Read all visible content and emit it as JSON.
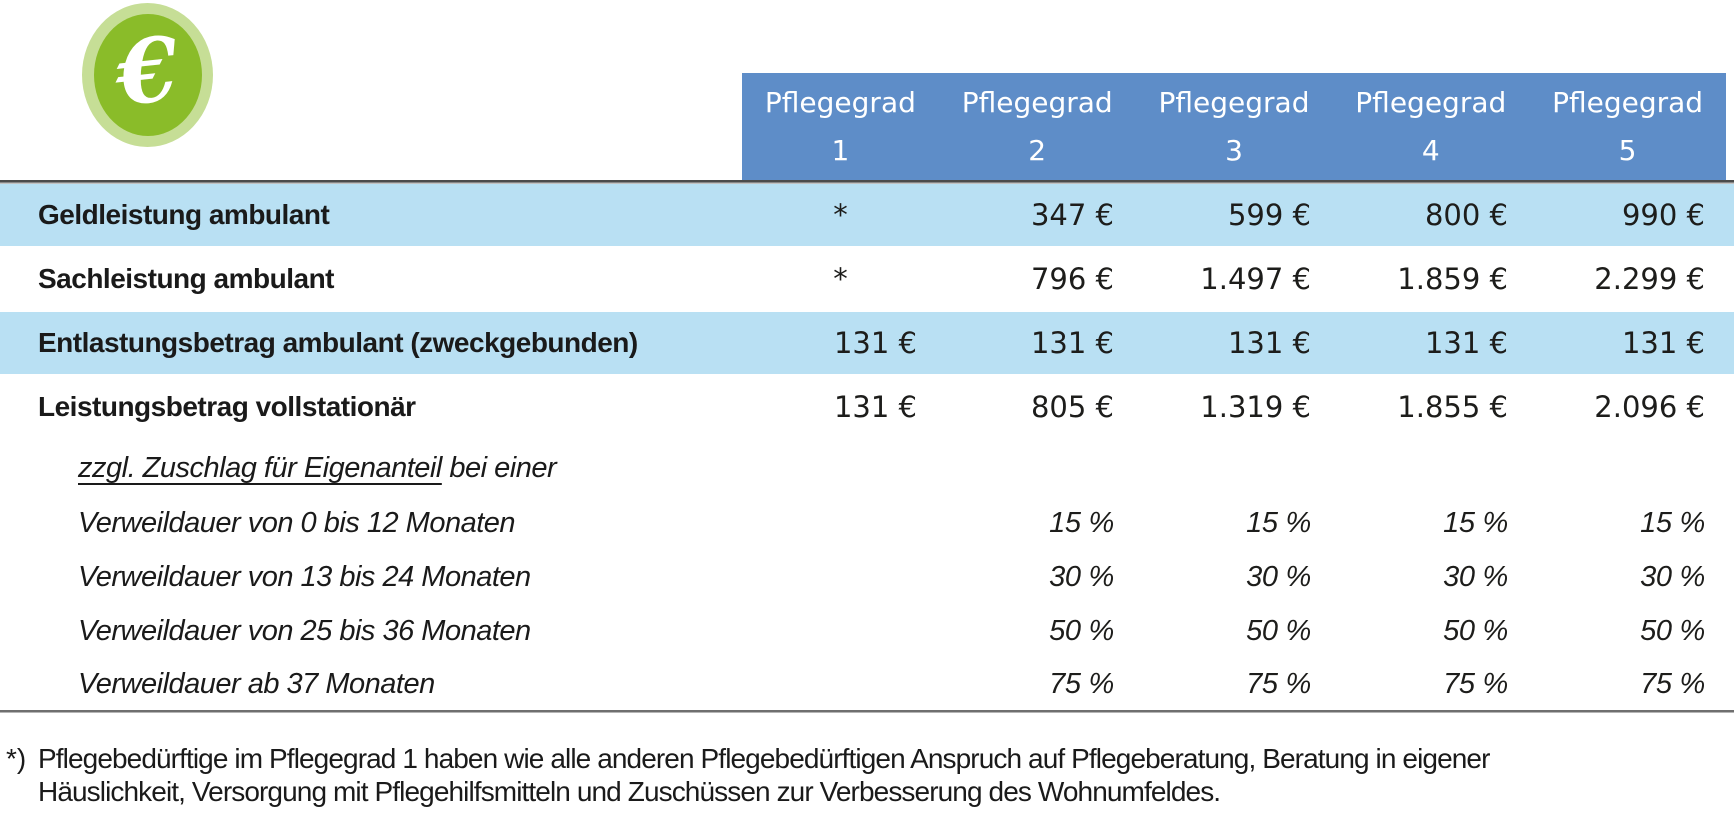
{
  "icon": {
    "symbol": "€",
    "colors": {
      "outer_ring": "#c6de96",
      "inner": "#8abc29",
      "glyph": "#ffffff"
    }
  },
  "colors": {
    "header_blue": "#5e8dc8",
    "band_blue": "#b9e0f3",
    "rule_dark": "#4b4b4b",
    "rule_gray": "#6f6f6f"
  },
  "table": {
    "columns": [
      {
        "title": "Pflegegrad",
        "number": "1"
      },
      {
        "title": "Pflegegrad",
        "number": "2"
      },
      {
        "title": "Pflegegrad",
        "number": "3"
      },
      {
        "title": "Pflegegrad",
        "number": "4"
      },
      {
        "title": "Pflegegrad",
        "number": "5"
      }
    ],
    "rows": [
      {
        "label": "Geldleistung ambulant",
        "values": [
          "*",
          "347 €",
          "599 €",
          "800 €",
          "990 €"
        ]
      },
      {
        "label": "Sachleistung ambulant",
        "values": [
          "*",
          "796 €",
          "1.497 €",
          "1.859 €",
          "2.299 €"
        ]
      },
      {
        "label": "Entlastungsbetrag ambulant (zweckgebunden)",
        "values": [
          "131 €",
          "131 €",
          "131 €",
          "131 €",
          "131 €"
        ]
      },
      {
        "label": "Leistungsbetrag vollstationär",
        "values": [
          "131 €",
          "805 €",
          "1.319 €",
          "1.855 €",
          "2.096 €"
        ]
      },
      {
        "label_underline": "zzgl. Zuschlag für Eigenanteil",
        "label_rest": " bei einer",
        "values": [
          "",
          "",
          "",
          "",
          ""
        ]
      },
      {
        "label": "Verweildauer von 0 bis 12 Monaten",
        "values": [
          "",
          "15 %",
          "15 %",
          "15 %",
          "15 %"
        ]
      },
      {
        "label": "Verweildauer von 13 bis 24 Monaten",
        "values": [
          "",
          "30 %",
          "30 %",
          "30 %",
          "30 %"
        ]
      },
      {
        "label": "Verweildauer von 25 bis 36 Monaten",
        "values": [
          "",
          "50 %",
          "50 %",
          "50 %",
          "50 %"
        ]
      },
      {
        "label": "Verweildauer ab 37 Monaten",
        "values": [
          "",
          "75 %",
          "75 %",
          "75 %",
          "75 %"
        ]
      }
    ]
  },
  "footnote": {
    "marker": "*)",
    "line1": "Pflegebedürftige im Pflegegrad 1 haben wie alle anderen Pflegebedürftigen Anspruch auf Pflegeberatung, Beratung in eigener",
    "line2": "Häuslichkeit, Versorgung mit Pflegehilfsmitteln und Zuschüssen zur Verbesserung des Wohnumfeldes."
  }
}
